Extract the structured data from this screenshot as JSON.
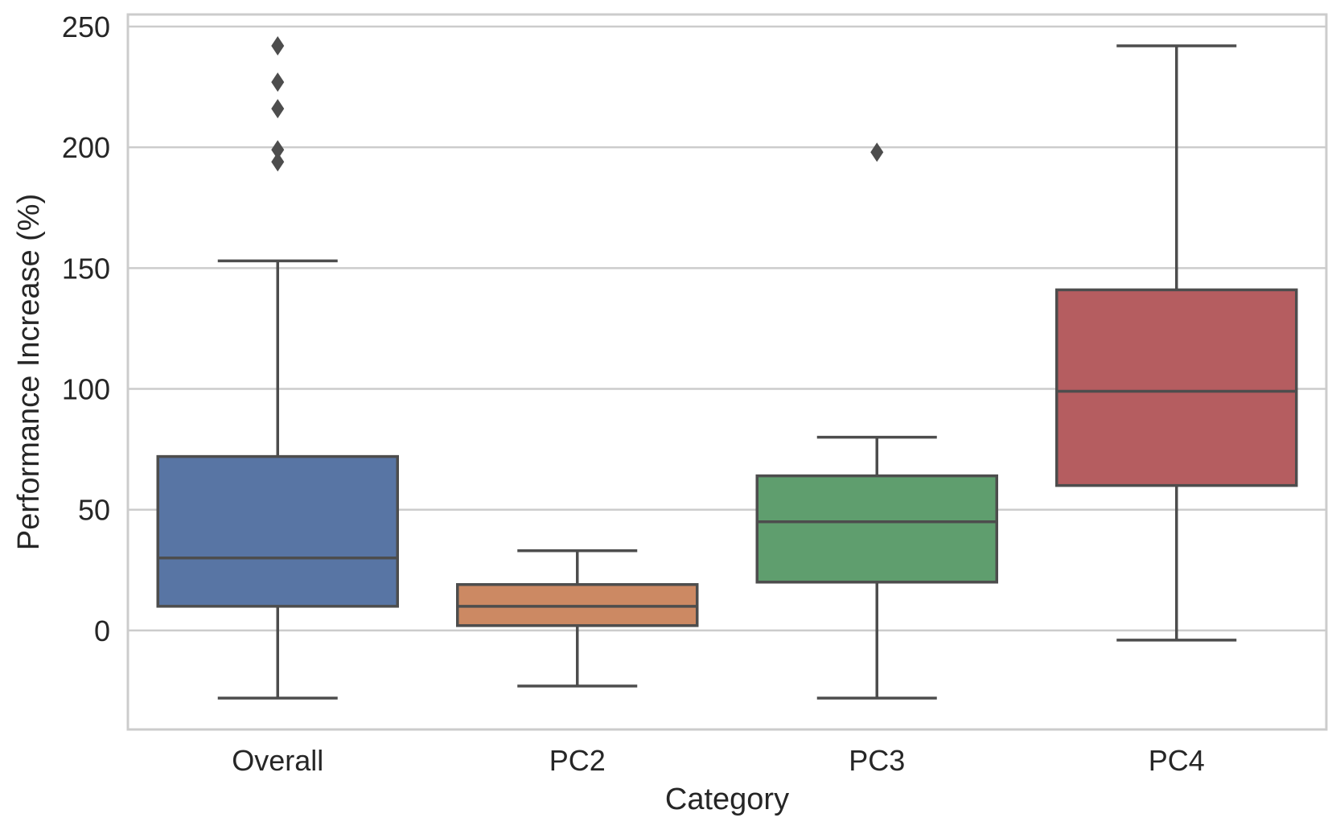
{
  "chart_data": {
    "type": "boxplot",
    "title": "",
    "xlabel": "Category",
    "ylabel": "Performance Increase (%)",
    "ylim": [
      -41,
      255
    ],
    "yticks": [
      0,
      50,
      100,
      150,
      200,
      250
    ],
    "grid": true,
    "categories": [
      "Overall",
      "PC2",
      "PC3",
      "PC4"
    ],
    "boxes": [
      {
        "category": "Overall",
        "color": "#5875a4",
        "whisker_low": -28,
        "q1": 10,
        "median": 30,
        "q3": 72,
        "whisker_high": 153,
        "outliers": [
          194,
          199,
          216,
          227,
          242
        ]
      },
      {
        "category": "PC2",
        "color": "#cc8963",
        "whisker_low": -23,
        "q1": 2,
        "median": 10,
        "q3": 19,
        "whisker_high": 33,
        "outliers": []
      },
      {
        "category": "PC3",
        "color": "#5f9e6e",
        "whisker_low": -28,
        "q1": 20,
        "median": 45,
        "q3": 64,
        "whisker_high": 80,
        "outliers": [
          198
        ]
      },
      {
        "category": "PC4",
        "color": "#b55d60",
        "whisker_low": -4,
        "q1": 60,
        "median": 99,
        "q3": 141,
        "whisker_high": 242,
        "outliers": []
      }
    ],
    "line_color": "#4d4d4d",
    "grid_color": "#cccccc",
    "frame_color": "#cccccc"
  }
}
